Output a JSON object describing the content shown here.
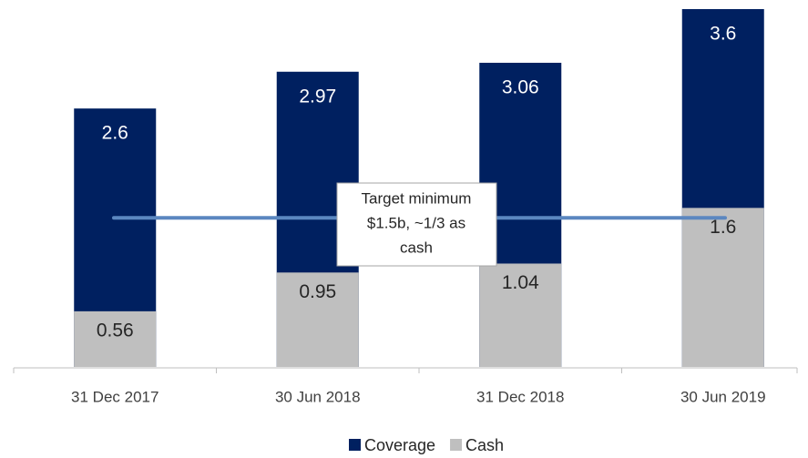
{
  "chart_data": {
    "type": "bar",
    "categories": [
      "31 Dec 2017",
      "30 Jun 2018",
      "31 Dec 2018",
      "30 Jun 2019"
    ],
    "series": [
      {
        "name": "Coverage",
        "color": "#002060",
        "values": [
          2.6,
          2.97,
          3.06,
          3.6
        ]
      },
      {
        "name": "Cash",
        "color": "#bfbfbf",
        "values": [
          0.56,
          0.95,
          1.04,
          1.6
        ]
      }
    ],
    "ylim": [
      0,
      3.6
    ],
    "target": {
      "value": 1.5,
      "color": "#5b87c0",
      "label": [
        "Target minimum",
        "$1.5b, ~1/3 as",
        "cash"
      ]
    },
    "legend": "bottom"
  }
}
